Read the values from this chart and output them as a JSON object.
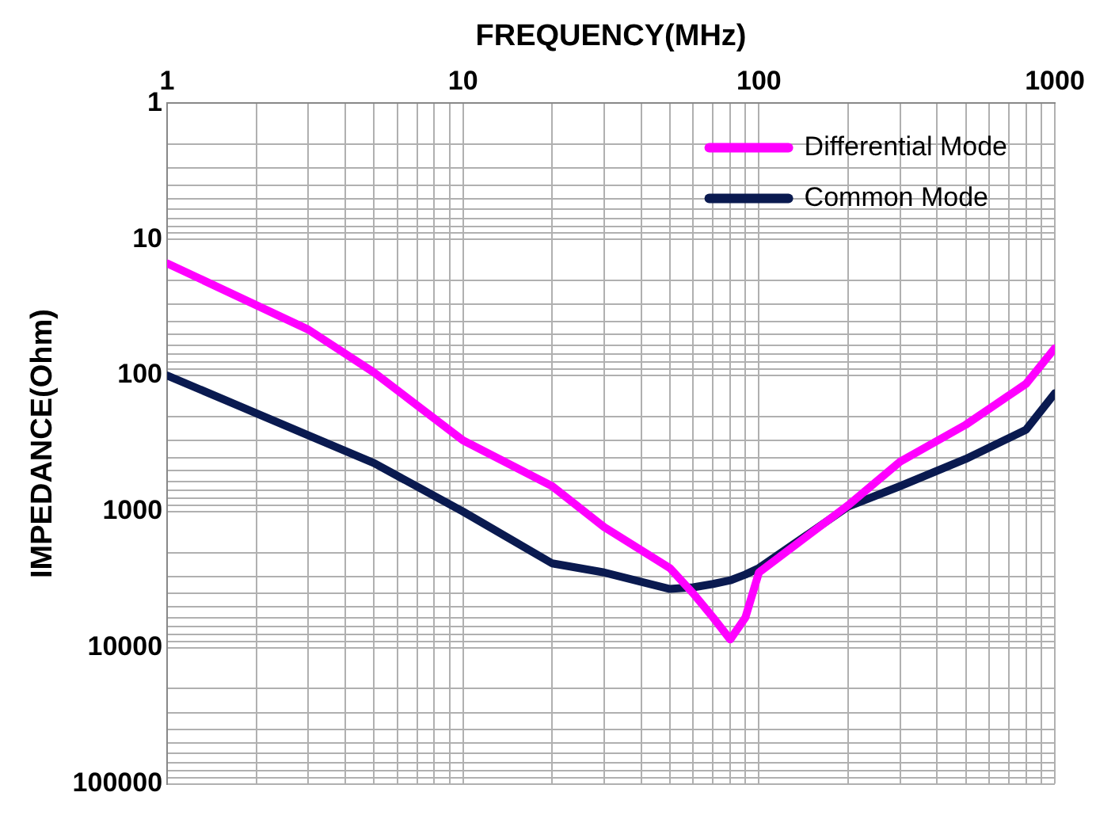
{
  "chart_data": {
    "type": "line",
    "xlabel": "FREQUENCY(MHz)",
    "ylabel": "IMPEDANCE(Ohm)",
    "log": "xy",
    "grid": true,
    "legend": "top right",
    "marker": "none",
    "line_style": "solid",
    "xlim": [
      1,
      1000
    ],
    "xticks": [
      1,
      {
        "value": 2,
        "label": null
      },
      {
        "value": 3,
        "label": null
      },
      {
        "value": 4,
        "label": null
      },
      {
        "value": 5,
        "label": null
      },
      {
        "value": 6,
        "label": null
      },
      {
        "value": 7,
        "label": null
      },
      {
        "value": 8,
        "label": null
      },
      {
        "value": 9,
        "label": null
      },
      10,
      {
        "value": 20,
        "label": null
      },
      {
        "value": 30,
        "label": null
      },
      {
        "value": 40,
        "label": null
      },
      {
        "value": 50,
        "label": null
      },
      {
        "value": 60,
        "label": null
      },
      {
        "value": 70,
        "label": null
      },
      {
        "value": 80,
        "label": null
      },
      {
        "value": 90,
        "label": null
      },
      100,
      {
        "value": 200,
        "label": null
      },
      {
        "value": 300,
        "label": null
      },
      {
        "value": 400,
        "label": null
      },
      {
        "value": 500,
        "label": null
      },
      {
        "value": 600,
        "label": null
      },
      {
        "value": 700,
        "label": null
      },
      {
        "value": 800,
        "label": null
      },
      {
        "value": 900,
        "label": null
      },
      1000
    ],
    "ylim": [
      100000,
      1
    ],
    "yticks": [
      1,
      {
        "value": 2,
        "label": null
      },
      {
        "value": 3,
        "label": null
      },
      {
        "value": 4,
        "label": null
      },
      {
        "value": 5,
        "label": null
      },
      {
        "value": 6,
        "label": null
      },
      {
        "value": 7,
        "label": null
      },
      {
        "value": 8,
        "label": null
      },
      {
        "value": 9,
        "label": null
      },
      10,
      {
        "value": 20,
        "label": null
      },
      {
        "value": 30,
        "label": null
      },
      {
        "value": 40,
        "label": null
      },
      {
        "value": 50,
        "label": null
      },
      {
        "value": 60,
        "label": null
      },
      {
        "value": 70,
        "label": null
      },
      {
        "value": 80,
        "label": null
      },
      {
        "value": 90,
        "label": null
      },
      100,
      {
        "value": 200,
        "label": null
      },
      {
        "value": 300,
        "label": null
      },
      {
        "value": 400,
        "label": null
      },
      {
        "value": 500,
        "label": null
      },
      {
        "value": 600,
        "label": null
      },
      {
        "value": 700,
        "label": null
      },
      {
        "value": 800,
        "label": null
      },
      {
        "value": 900,
        "label": null
      },
      1000,
      {
        "value": 2000,
        "label": null
      },
      {
        "value": 3000,
        "label": null
      },
      {
        "value": 4000,
        "label": null
      },
      {
        "value": 5000,
        "label": null
      },
      {
        "value": 6000,
        "label": null
      },
      {
        "value": 7000,
        "label": null
      },
      {
        "value": 8000,
        "label": null
      },
      {
        "value": 9000,
        "label": null
      },
      10000,
      {
        "value": 20000,
        "label": null
      },
      {
        "value": 30000,
        "label": null
      },
      {
        "value": 40000,
        "label": null
      },
      {
        "value": 50000,
        "label": null
      },
      {
        "value": 60000,
        "label": null
      },
      {
        "value": 70000,
        "label": null
      },
      {
        "value": 80000,
        "label": null
      },
      {
        "value": 90000,
        "label": null
      },
      100000
    ],
    "x": [
      1,
      3,
      5,
      10,
      20,
      30,
      50,
      60,
      70,
      80,
      90,
      100,
      200,
      300,
      500,
      800,
      1000
    ],
    "series": [
      {
        "name": "Differential Mode",
        "color": "#ff00ff",
        "values": [
          15,
          46,
          95,
          300,
          650,
          1300,
          2600,
          4000,
          6000,
          8700,
          6000,
          2800,
          900,
          430,
          230,
          115,
          63
        ]
      },
      {
        "name": "Common Mode",
        "color": "#0a1a50",
        "values": [
          100,
          275,
          440,
          1000,
          2400,
          2800,
          3700,
          3600,
          3400,
          3200,
          2900,
          2600,
          920,
          650,
          410,
          250,
          135
        ]
      }
    ]
  }
}
